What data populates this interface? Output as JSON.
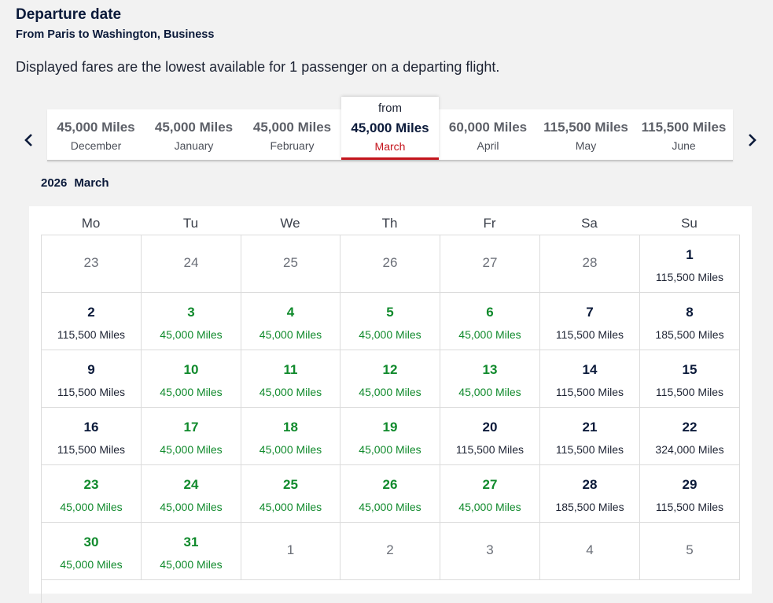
{
  "header": {
    "title": "Departure date",
    "subtitle": "From Paris to Washington, Business",
    "note": "Displayed fares are the lowest available for 1 passenger on a departing flight."
  },
  "months": [
    {
      "miles": "45,000 Miles",
      "name": "December"
    },
    {
      "miles": "45,000 Miles",
      "name": "January"
    },
    {
      "miles": "45,000 Miles",
      "name": "February"
    },
    {
      "miles": "45,000 Miles",
      "name": "March",
      "from": "from",
      "active": true
    },
    {
      "miles": "60,000 Miles",
      "name": "April"
    },
    {
      "miles": "115,500 Miles",
      "name": "May"
    },
    {
      "miles": "115,500 Miles",
      "name": "June"
    }
  ],
  "selected": {
    "year": "2026",
    "month": "March"
  },
  "weekdays": [
    "Mo",
    "Tu",
    "We",
    "Th",
    "Fr",
    "Sa",
    "Su"
  ],
  "days": [
    {
      "day": "23",
      "price": "",
      "status": "other"
    },
    {
      "day": "24",
      "price": "",
      "status": "other"
    },
    {
      "day": "25",
      "price": "",
      "status": "other"
    },
    {
      "day": "26",
      "price": "",
      "status": "other"
    },
    {
      "day": "27",
      "price": "",
      "status": "other"
    },
    {
      "day": "28",
      "price": "",
      "status": "other"
    },
    {
      "day": "1",
      "price": "115,500 Miles",
      "status": "dark"
    },
    {
      "day": "2",
      "price": "115,500 Miles",
      "status": "dark"
    },
    {
      "day": "3",
      "price": "45,000 Miles",
      "status": "green"
    },
    {
      "day": "4",
      "price": "45,000 Miles",
      "status": "green"
    },
    {
      "day": "5",
      "price": "45,000 Miles",
      "status": "green"
    },
    {
      "day": "6",
      "price": "45,000 Miles",
      "status": "green"
    },
    {
      "day": "7",
      "price": "115,500 Miles",
      "status": "dark"
    },
    {
      "day": "8",
      "price": "185,500 Miles",
      "status": "dark"
    },
    {
      "day": "9",
      "price": "115,500 Miles",
      "status": "dark"
    },
    {
      "day": "10",
      "price": "45,000 Miles",
      "status": "green"
    },
    {
      "day": "11",
      "price": "45,000 Miles",
      "status": "green"
    },
    {
      "day": "12",
      "price": "45,000 Miles",
      "status": "green"
    },
    {
      "day": "13",
      "price": "45,000 Miles",
      "status": "green"
    },
    {
      "day": "14",
      "price": "115,500 Miles",
      "status": "dark"
    },
    {
      "day": "15",
      "price": "115,500 Miles",
      "status": "dark"
    },
    {
      "day": "16",
      "price": "115,500 Miles",
      "status": "dark"
    },
    {
      "day": "17",
      "price": "45,000 Miles",
      "status": "green"
    },
    {
      "day": "18",
      "price": "45,000 Miles",
      "status": "green"
    },
    {
      "day": "19",
      "price": "45,000 Miles",
      "status": "green"
    },
    {
      "day": "20",
      "price": "115,500 Miles",
      "status": "dark"
    },
    {
      "day": "21",
      "price": "115,500 Miles",
      "status": "dark"
    },
    {
      "day": "22",
      "price": "324,000 Miles",
      "status": "dark"
    },
    {
      "day": "23",
      "price": "45,000 Miles",
      "status": "green"
    },
    {
      "day": "24",
      "price": "45,000 Miles",
      "status": "green"
    },
    {
      "day": "25",
      "price": "45,000 Miles",
      "status": "green"
    },
    {
      "day": "26",
      "price": "45,000 Miles",
      "status": "green"
    },
    {
      "day": "27",
      "price": "45,000 Miles",
      "status": "green"
    },
    {
      "day": "28",
      "price": "185,500 Miles",
      "status": "dark"
    },
    {
      "day": "29",
      "price": "115,500 Miles",
      "status": "dark"
    },
    {
      "day": "30",
      "price": "45,000 Miles",
      "status": "green"
    },
    {
      "day": "31",
      "price": "45,000 Miles",
      "status": "green"
    },
    {
      "day": "1",
      "price": "",
      "status": "other"
    },
    {
      "day": "2",
      "price": "",
      "status": "other"
    },
    {
      "day": "3",
      "price": "",
      "status": "other"
    },
    {
      "day": "4",
      "price": "",
      "status": "other"
    },
    {
      "day": "5",
      "price": "",
      "status": "other"
    }
  ],
  "colors": {
    "accent": "#c4141c",
    "available": "#108a2c",
    "text": "#0b1a3a"
  },
  "icons": {
    "prev": "chevron-left-icon",
    "next": "chevron-right-icon"
  }
}
